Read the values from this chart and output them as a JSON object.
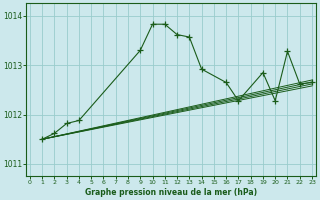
{
  "title": "Graphe pression niveau de la mer (hPa)",
  "bg_color": "#cce8ec",
  "grid_color": "#99cccc",
  "line_color": "#1a5c1a",
  "xlim": [
    -0.3,
    23.3
  ],
  "ylim": [
    1010.75,
    1014.25
  ],
  "yticks": [
    1011,
    1012,
    1013,
    1014
  ],
  "xticks": [
    0,
    1,
    2,
    3,
    4,
    5,
    6,
    7,
    8,
    9,
    10,
    11,
    12,
    13,
    14,
    15,
    16,
    17,
    18,
    19,
    20,
    21,
    22,
    23
  ],
  "main_x": [
    1,
    2,
    3,
    4,
    9,
    10,
    11,
    12,
    13,
    14,
    16,
    17,
    19,
    20,
    21,
    22,
    23
  ],
  "main_y": [
    1011.5,
    1011.62,
    1011.82,
    1011.88,
    1013.3,
    1013.83,
    1013.83,
    1013.62,
    1013.57,
    1012.92,
    1012.65,
    1012.28,
    1012.85,
    1012.28,
    1013.28,
    1012.62,
    1012.65
  ],
  "straight_lines": [
    {
      "x0": 1,
      "y0": 1011.5,
      "x1": 23,
      "y1": 1012.58
    },
    {
      "x0": 1,
      "y0": 1011.5,
      "x1": 23,
      "y1": 1012.62
    },
    {
      "x0": 1,
      "y0": 1011.5,
      "x1": 23,
      "y1": 1012.66
    },
    {
      "x0": 1,
      "y0": 1011.5,
      "x1": 23,
      "y1": 1012.7
    }
  ]
}
